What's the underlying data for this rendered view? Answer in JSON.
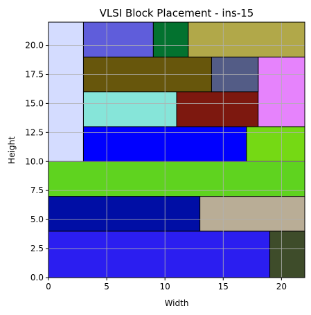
{
  "chart_data": {
    "type": "block-placement",
    "title": "VLSI Block Placement - ins-15",
    "xlabel": "Width",
    "ylabel": "Height",
    "xlim": [
      0,
      22
    ],
    "ylim": [
      0,
      22
    ],
    "xticks": [
      0,
      5,
      10,
      15,
      20
    ],
    "xtick_labels": [
      "0",
      "5",
      "10",
      "15",
      "20"
    ],
    "yticks": [
      0,
      2.5,
      5,
      7.5,
      10,
      12.5,
      15,
      17.5,
      20
    ],
    "ytick_labels": [
      "0.0",
      "2.5",
      "5.0",
      "7.5",
      "10.0",
      "12.5",
      "15.0",
      "17.5",
      "20.0"
    ],
    "grid": true,
    "blocks": [
      {
        "x": 0,
        "y": 0,
        "w": 19,
        "h": 4,
        "color": "#2b1ef0"
      },
      {
        "x": 19,
        "y": 0,
        "w": 3,
        "h": 4,
        "color": "#3e4c2a"
      },
      {
        "x": 0,
        "y": 4,
        "w": 13,
        "h": 3,
        "color": "#000ea5"
      },
      {
        "x": 13,
        "y": 4,
        "w": 9,
        "h": 3,
        "color": "#b9ad96"
      },
      {
        "x": 0,
        "y": 7,
        "w": 22,
        "h": 3,
        "color": "#5fd31f"
      },
      {
        "x": 0,
        "y": 10,
        "w": 3,
        "h": 12,
        "color": "#d4dcff"
      },
      {
        "x": 3,
        "y": 10,
        "w": 14,
        "h": 3,
        "color": "#0000ff"
      },
      {
        "x": 17,
        "y": 10,
        "w": 5,
        "h": 3,
        "color": "#75d914"
      },
      {
        "x": 3,
        "y": 13,
        "w": 8,
        "h": 3,
        "color": "#86e5d9"
      },
      {
        "x": 11,
        "y": 13,
        "w": 7,
        "h": 3,
        "color": "#7d180f"
      },
      {
        "x": 18,
        "y": 13,
        "w": 4,
        "h": 6,
        "color": "#e683fc"
      },
      {
        "x": 3,
        "y": 16,
        "w": 11,
        "h": 3,
        "color": "#67560c"
      },
      {
        "x": 14,
        "y": 16,
        "w": 4,
        "h": 3,
        "color": "#535c86"
      },
      {
        "x": 3,
        "y": 19,
        "w": 6,
        "h": 3,
        "color": "#5f5ddb"
      },
      {
        "x": 9,
        "y": 19,
        "w": 3,
        "h": 3,
        "color": "#03722f"
      },
      {
        "x": 12,
        "y": 19,
        "w": 10,
        "h": 3,
        "color": "#b1a849"
      }
    ]
  }
}
